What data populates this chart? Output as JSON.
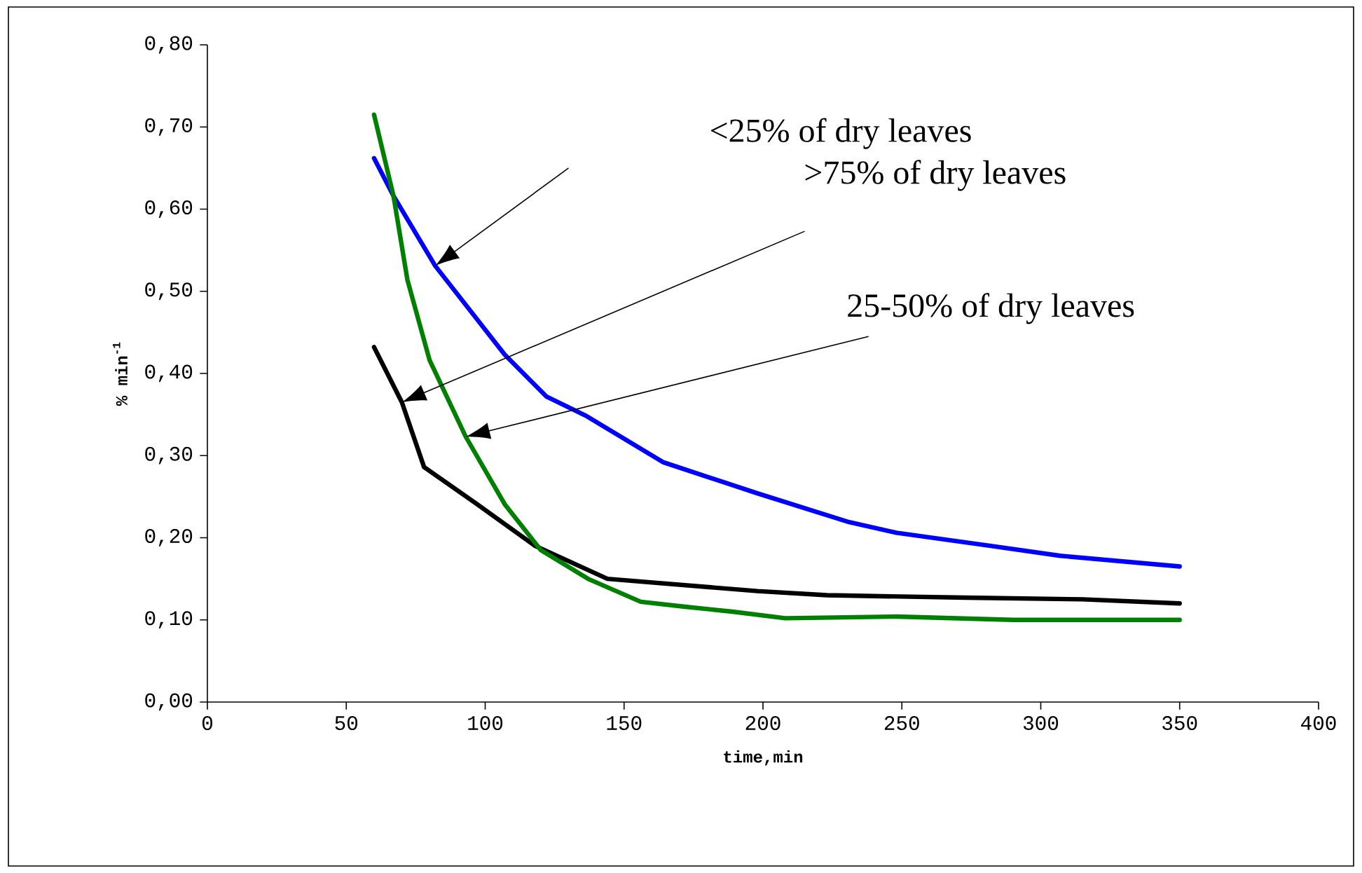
{
  "chart_data": {
    "type": "line",
    "xlabel": "time,min",
    "ylabel": "% min$^{-1}$",
    "xlim": [
      0,
      400
    ],
    "xticks": [
      0,
      50,
      100,
      150,
      200,
      250,
      300,
      350,
      400
    ],
    "ylim": [
      0,
      0.8
    ],
    "yticks": [
      {
        "value": 0,
        "label": "0,00"
      },
      {
        "value": 0.1,
        "label": "0,10"
      },
      {
        "value": 0.2,
        "label": "0,20"
      },
      {
        "value": 0.3,
        "label": "0,30"
      },
      {
        "value": 0.4,
        "label": "0,40"
      },
      {
        "value": 0.5,
        "label": "0,50"
      },
      {
        "value": 0.6,
        "label": "0,60"
      },
      {
        "value": 0.7,
        "label": "0,70"
      },
      {
        "value": 0.8,
        "label": "0,80"
      }
    ],
    "grid": false,
    "line_style": "solid",
    "series": [
      {
        "color": "#0000ff",
        "x": [
          60,
          67,
          82,
          107,
          122,
          136,
          164,
          198,
          231,
          248,
          282,
          307,
          350
        ],
        "values": [
          0.662,
          0.616,
          0.531,
          0.423,
          0.372,
          0.349,
          0.292,
          0.254,
          0.219,
          0.206,
          0.19,
          0.178,
          0.165
        ]
      },
      {
        "color": "#000000",
        "x": [
          60,
          70,
          78,
          97,
          118,
          144,
          198,
          223,
          273,
          315,
          350
        ],
        "values": [
          0.432,
          0.365,
          0.286,
          0.241,
          0.19,
          0.15,
          0.135,
          0.13,
          0.127,
          0.125,
          0.12
        ]
      },
      {
        "color": "#008000",
        "x": [
          60,
          67,
          72,
          80,
          93,
          107,
          120,
          137,
          156,
          172,
          189,
          208,
          248,
          290,
          350
        ],
        "values": [
          0.715,
          0.616,
          0.514,
          0.416,
          0.323,
          0.241,
          0.185,
          0.15,
          0.122,
          0.116,
          0.11,
          0.102,
          0.104,
          0.1,
          0.1
        ]
      }
    ],
    "annotations": [
      "<25% of dry leaves",
      ">75% of dry leaves",
      "25-50% of dry leaves"
    ]
  }
}
